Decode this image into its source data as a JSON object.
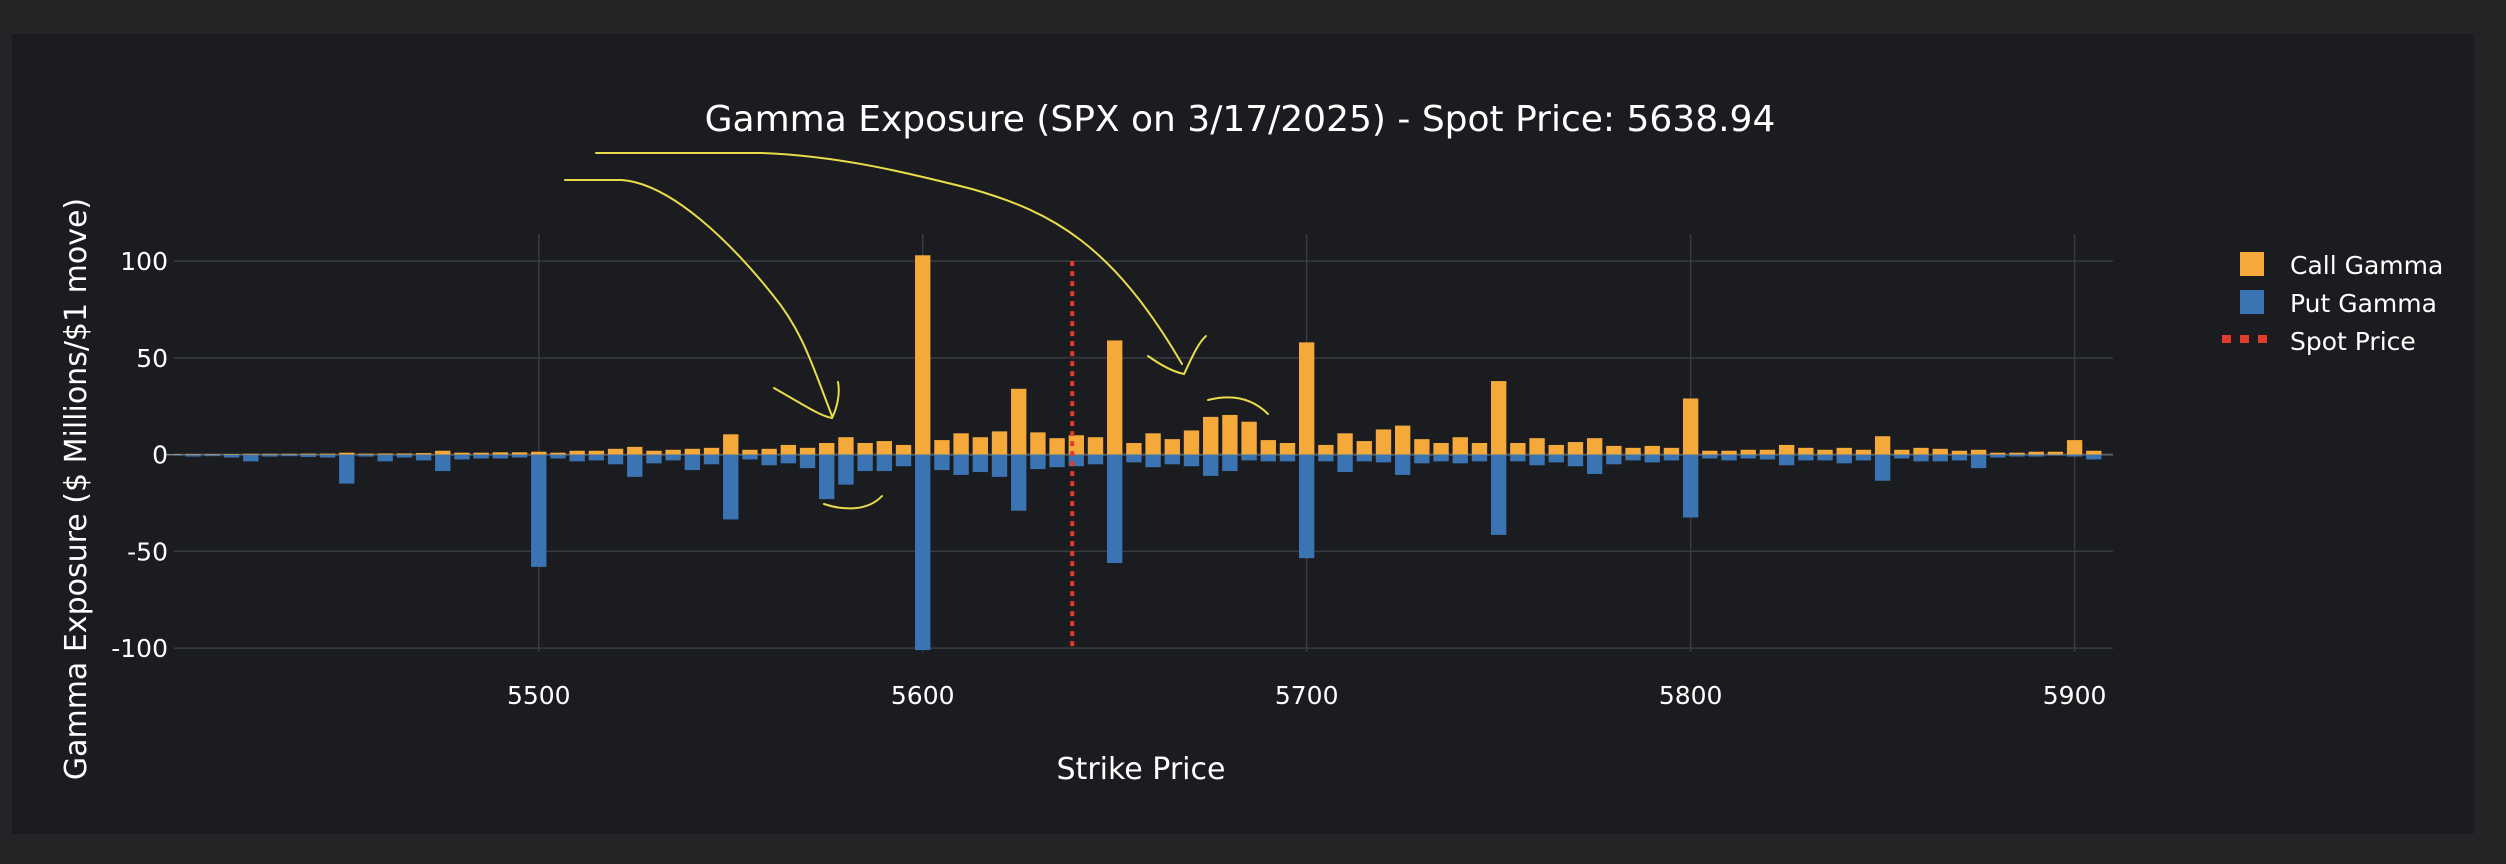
{
  "chart_data": {
    "type": "bar",
    "title": "Gamma Exposure (SPX on 3/17/2025) - Spot Price: 5638.94",
    "xlabel": "Strike Price",
    "ylabel": "Gamma Exposure ($ Millions/$1 move)",
    "xlim": [
      5405,
      5910
    ],
    "ylim": [
      -102,
      114
    ],
    "x_ticks": [
      5500,
      5600,
      5700,
      5800,
      5900
    ],
    "y_ticks": [
      -100,
      -50,
      0,
      50,
      100
    ],
    "bar_width": 4,
    "grid": true,
    "legend_position": "top-right",
    "spot_price": 5638.94,
    "strikes": [
      5405,
      5410,
      5415,
      5420,
      5425,
      5430,
      5435,
      5440,
      5445,
      5450,
      5455,
      5460,
      5465,
      5470,
      5475,
      5480,
      5485,
      5490,
      5495,
      5500,
      5505,
      5510,
      5515,
      5520,
      5525,
      5530,
      5535,
      5540,
      5545,
      5550,
      5555,
      5560,
      5565,
      5570,
      5575,
      5580,
      5585,
      5590,
      5595,
      5600,
      5605,
      5610,
      5615,
      5620,
      5625,
      5630,
      5635,
      5640,
      5645,
      5650,
      5655,
      5660,
      5665,
      5670,
      5675,
      5680,
      5685,
      5690,
      5695,
      5700,
      5705,
      5710,
      5715,
      5720,
      5725,
      5730,
      5735,
      5740,
      5745,
      5750,
      5755,
      5760,
      5765,
      5770,
      5775,
      5780,
      5785,
      5790,
      5795,
      5800,
      5805,
      5810,
      5815,
      5820,
      5825,
      5830,
      5835,
      5840,
      5845,
      5850,
      5855,
      5860,
      5865,
      5870,
      5875,
      5880,
      5885,
      5890,
      5895,
      5900,
      5905
    ],
    "series": [
      {
        "name": "Call Gamma",
        "color": "#f4a93a",
        "values": [
          0.3,
          0.3,
          0.3,
          0.3,
          0.4,
          0.4,
          0.4,
          0.5,
          0.5,
          1.0,
          0.5,
          0.6,
          0.6,
          0.8,
          2.0,
          1.0,
          1.0,
          1.2,
          1.2,
          1.5,
          1.0,
          2.0,
          2.0,
          3.0,
          4.0,
          2.0,
          2.5,
          3.0,
          3.5,
          10.5,
          2.5,
          3.0,
          5.0,
          3.5,
          6.0,
          9.0,
          6.0,
          7.0,
          5.0,
          103.0,
          7.5,
          11.0,
          9.0,
          12.0,
          34.0,
          11.5,
          8.5,
          10.0,
          9.0,
          59.0,
          6.0,
          11.0,
          8.0,
          12.5,
          19.5,
          20.5,
          17.0,
          7.5,
          6.0,
          58.0,
          5.0,
          11.0,
          7.0,
          13.0,
          15.0,
          8.0,
          6.0,
          9.0,
          6.0,
          38.0,
          6.0,
          8.5,
          5.0,
          6.5,
          8.5,
          4.5,
          3.5,
          4.5,
          3.5,
          29.0,
          2.0,
          2.0,
          2.5,
          2.5,
          5.0,
          3.5,
          2.5,
          3.5,
          2.5,
          9.5,
          2.5,
          3.5,
          3.0,
          2.0,
          2.5,
          1.0,
          1.0,
          1.5,
          1.5,
          7.5,
          2.0
        ]
      },
      {
        "name": "Put Gamma",
        "color": "#3a74b3",
        "values": [
          -0.5,
          -1.0,
          -0.8,
          -1.5,
          -3.5,
          -1.0,
          -0.8,
          -1.2,
          -1.5,
          -15.0,
          -1.0,
          -3.5,
          -1.5,
          -3.0,
          -8.5,
          -2.5,
          -2.0,
          -2.0,
          -1.5,
          -58.0,
          -2.0,
          -3.5,
          -3.0,
          -5.0,
          -11.5,
          -4.5,
          -3.0,
          -8.0,
          -5.0,
          -33.5,
          -2.5,
          -5.5,
          -4.5,
          -7.0,
          -23.0,
          -15.5,
          -8.5,
          -8.5,
          -6.0,
          -101.0,
          -8.0,
          -10.5,
          -9.0,
          -11.5,
          -29.0,
          -7.5,
          -6.5,
          -6.0,
          -5.0,
          -56.0,
          -4.0,
          -6.5,
          -5.0,
          -6.0,
          -11.0,
          -8.5,
          -3.0,
          -3.5,
          -3.5,
          -53.5,
          -3.5,
          -9.0,
          -3.5,
          -4.0,
          -10.5,
          -4.5,
          -3.5,
          -4.5,
          -3.5,
          -41.5,
          -3.5,
          -5.5,
          -4.0,
          -6.0,
          -10.0,
          -5.0,
          -3.0,
          -4.0,
          -3.0,
          -32.5,
          -2.0,
          -3.0,
          -2.0,
          -2.5,
          -5.5,
          -3.0,
          -3.0,
          -4.5,
          -3.0,
          -13.5,
          -2.0,
          -3.5,
          -3.5,
          -3.0,
          -7.0,
          -1.5,
          -1.0,
          -1.0,
          -0.5,
          -1.0,
          -2.5
        ]
      },
      {
        "name": "Spot Price",
        "color": "#e03b2c"
      }
    ]
  }
}
